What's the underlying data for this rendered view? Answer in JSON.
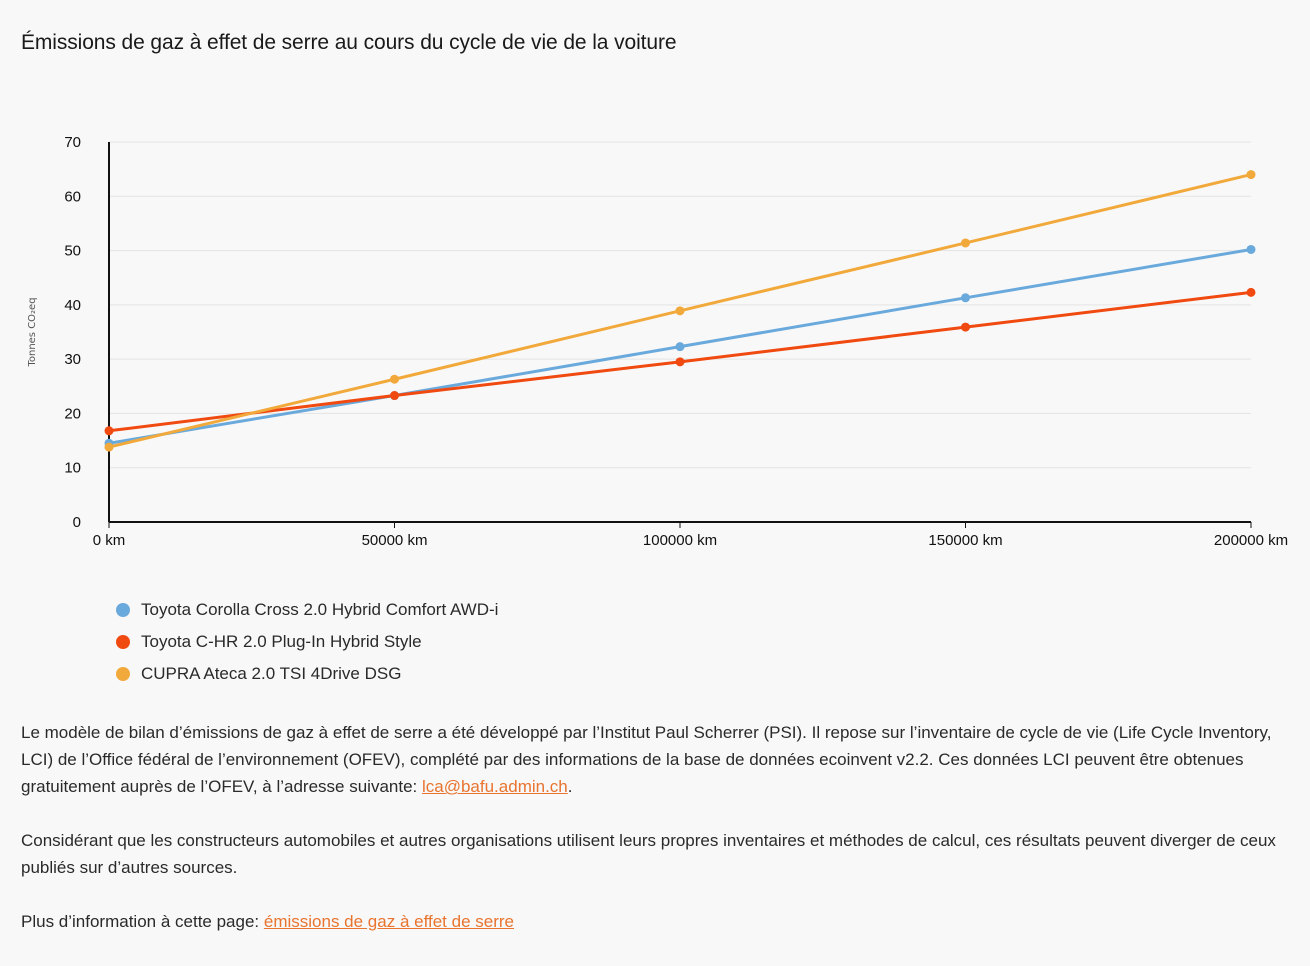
{
  "chart_data": {
    "type": "line",
    "title": "Émissions de gaz à effet de serre au cours du cycle de vie de la voiture",
    "xlabel": "",
    "ylabel": "Tonnes CO₂eq",
    "x_ticks": [
      "0 km",
      "50000 km",
      "100000 km",
      "150000 km",
      "200000 km"
    ],
    "x": [
      0,
      50000,
      100000,
      150000,
      200000
    ],
    "y_ticks": [
      "0",
      "10",
      "20",
      "30",
      "40",
      "50",
      "60",
      "70"
    ],
    "ylim": [
      0,
      70
    ],
    "xlim": [
      0,
      200000
    ],
    "grid": true,
    "legend_position": "bottom-left",
    "series": [
      {
        "name": "Toyota Corolla Cross 2.0 Hybrid Comfort AWD-i",
        "color": "#6aa9dc",
        "values": [
          14.5,
          23.3,
          32.3,
          41.3,
          50.2
        ]
      },
      {
        "name": "Toyota C-HR 2.0 Plug-In Hybrid Style",
        "color": "#f04a10",
        "values": [
          16.8,
          23.3,
          29.5,
          35.9,
          42.3
        ]
      },
      {
        "name": "CUPRA Ateca 2.0 TSI 4Drive DSG",
        "color": "#f2a93b",
        "values": [
          13.8,
          26.3,
          38.9,
          51.4,
          64.0
        ]
      }
    ]
  },
  "paragraphs": {
    "p1_text": "Le modèle de bilan d’émissions de gaz à effet de serre a été développé par l’Institut Paul Scherrer (PSI). Il repose sur l’inventaire de cycle de vie (Life Cycle Inventory, LCI) de l’Office fédéral de l’environnement (OFEV), complété par des informations de la base de données ecoinvent v2.2. Ces données LCI peuvent être obtenues gratuitement auprès de l’OFEV, à l’adresse suivante: ",
    "p1_link": "lca@bafu.admin.ch",
    "p1_end": ".",
    "p2_text": "Considérant que les constructeurs automobiles et autres organisations utilisent leurs propres inventaires et méthodes de calcul, ces résultats peuvent diverger de ceux publiés sur d’autres sources.",
    "p3_text": "Plus d’information à cette page: ",
    "p3_link": "émissions de gaz à effet de serre"
  }
}
